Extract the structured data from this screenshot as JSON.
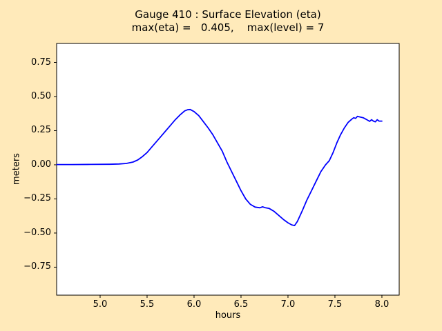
{
  "figure": {
    "background_color": "#ffeaba",
    "plot_background": "#ffffff",
    "frame_color": "#000000",
    "title_line1": "Gauge 410 : Surface Elevation (eta)",
    "title_line2": "max(eta) =   0.405,    max(level) = 7"
  },
  "chart_data": {
    "type": "line",
    "title": "Gauge 410 : Surface Elevation (eta)",
    "subtitle": "max(eta) =   0.405,    max(level) = 7",
    "max_eta": 0.405,
    "max_level": 7,
    "xlabel": "hours",
    "ylabel": "meters",
    "grid": false,
    "legend": false,
    "xlim": [
      4.537,
      8.184
    ],
    "ylim": [
      -0.955,
      0.889
    ],
    "x_ticks": [
      5.0,
      5.5,
      6.0,
      6.5,
      7.0,
      7.5,
      8.0
    ],
    "x_tick_labels": [
      "5.0",
      "5.5",
      "6.0",
      "6.5",
      "7.0",
      "7.5",
      "8.0"
    ],
    "y_ticks": [
      0.75,
      0.5,
      0.25,
      0.0,
      -0.25,
      -0.5,
      -0.75
    ],
    "y_tick_labels": [
      "0.75",
      "0.50",
      "0.25",
      "0.00",
      "−0.25",
      "−0.50",
      "−0.75"
    ],
    "line_color": "#0000ff",
    "line_width": 1.8,
    "series": [
      {
        "name": "eta",
        "x": [
          4.54,
          4.7,
          4.9,
          5.1,
          5.2,
          5.28,
          5.35,
          5.4,
          5.45,
          5.5,
          5.55,
          5.6,
          5.65,
          5.7,
          5.75,
          5.8,
          5.85,
          5.9,
          5.93,
          5.96,
          6.0,
          6.05,
          6.1,
          6.15,
          6.2,
          6.25,
          6.3,
          6.35,
          6.4,
          6.45,
          6.5,
          6.55,
          6.6,
          6.65,
          6.7,
          6.73,
          6.76,
          6.8,
          6.85,
          6.9,
          6.95,
          7.0,
          7.04,
          7.07,
          7.1,
          7.15,
          7.2,
          7.25,
          7.3,
          7.35,
          7.4,
          7.44,
          7.48,
          7.52,
          7.56,
          7.6,
          7.64,
          7.68,
          7.7,
          7.72,
          7.74,
          7.77,
          7.8,
          7.84,
          7.87,
          7.89,
          7.91,
          7.93,
          7.95,
          7.97,
          8.0
        ],
        "y": [
          0.002,
          0.002,
          0.003,
          0.004,
          0.006,
          0.01,
          0.02,
          0.035,
          0.06,
          0.09,
          0.13,
          0.17,
          0.21,
          0.25,
          0.29,
          0.33,
          0.365,
          0.395,
          0.403,
          0.405,
          0.39,
          0.36,
          0.315,
          0.27,
          0.22,
          0.16,
          0.1,
          0.02,
          -0.05,
          -0.12,
          -0.19,
          -0.25,
          -0.29,
          -0.31,
          -0.315,
          -0.308,
          -0.315,
          -0.32,
          -0.34,
          -0.37,
          -0.4,
          -0.425,
          -0.44,
          -0.445,
          -0.415,
          -0.34,
          -0.26,
          -0.19,
          -0.12,
          -0.05,
          0.0,
          0.03,
          0.09,
          0.16,
          0.22,
          0.27,
          0.31,
          0.335,
          0.345,
          0.34,
          0.355,
          0.35,
          0.345,
          0.33,
          0.318,
          0.33,
          0.32,
          0.315,
          0.33,
          0.32,
          0.32
        ]
      }
    ]
  }
}
